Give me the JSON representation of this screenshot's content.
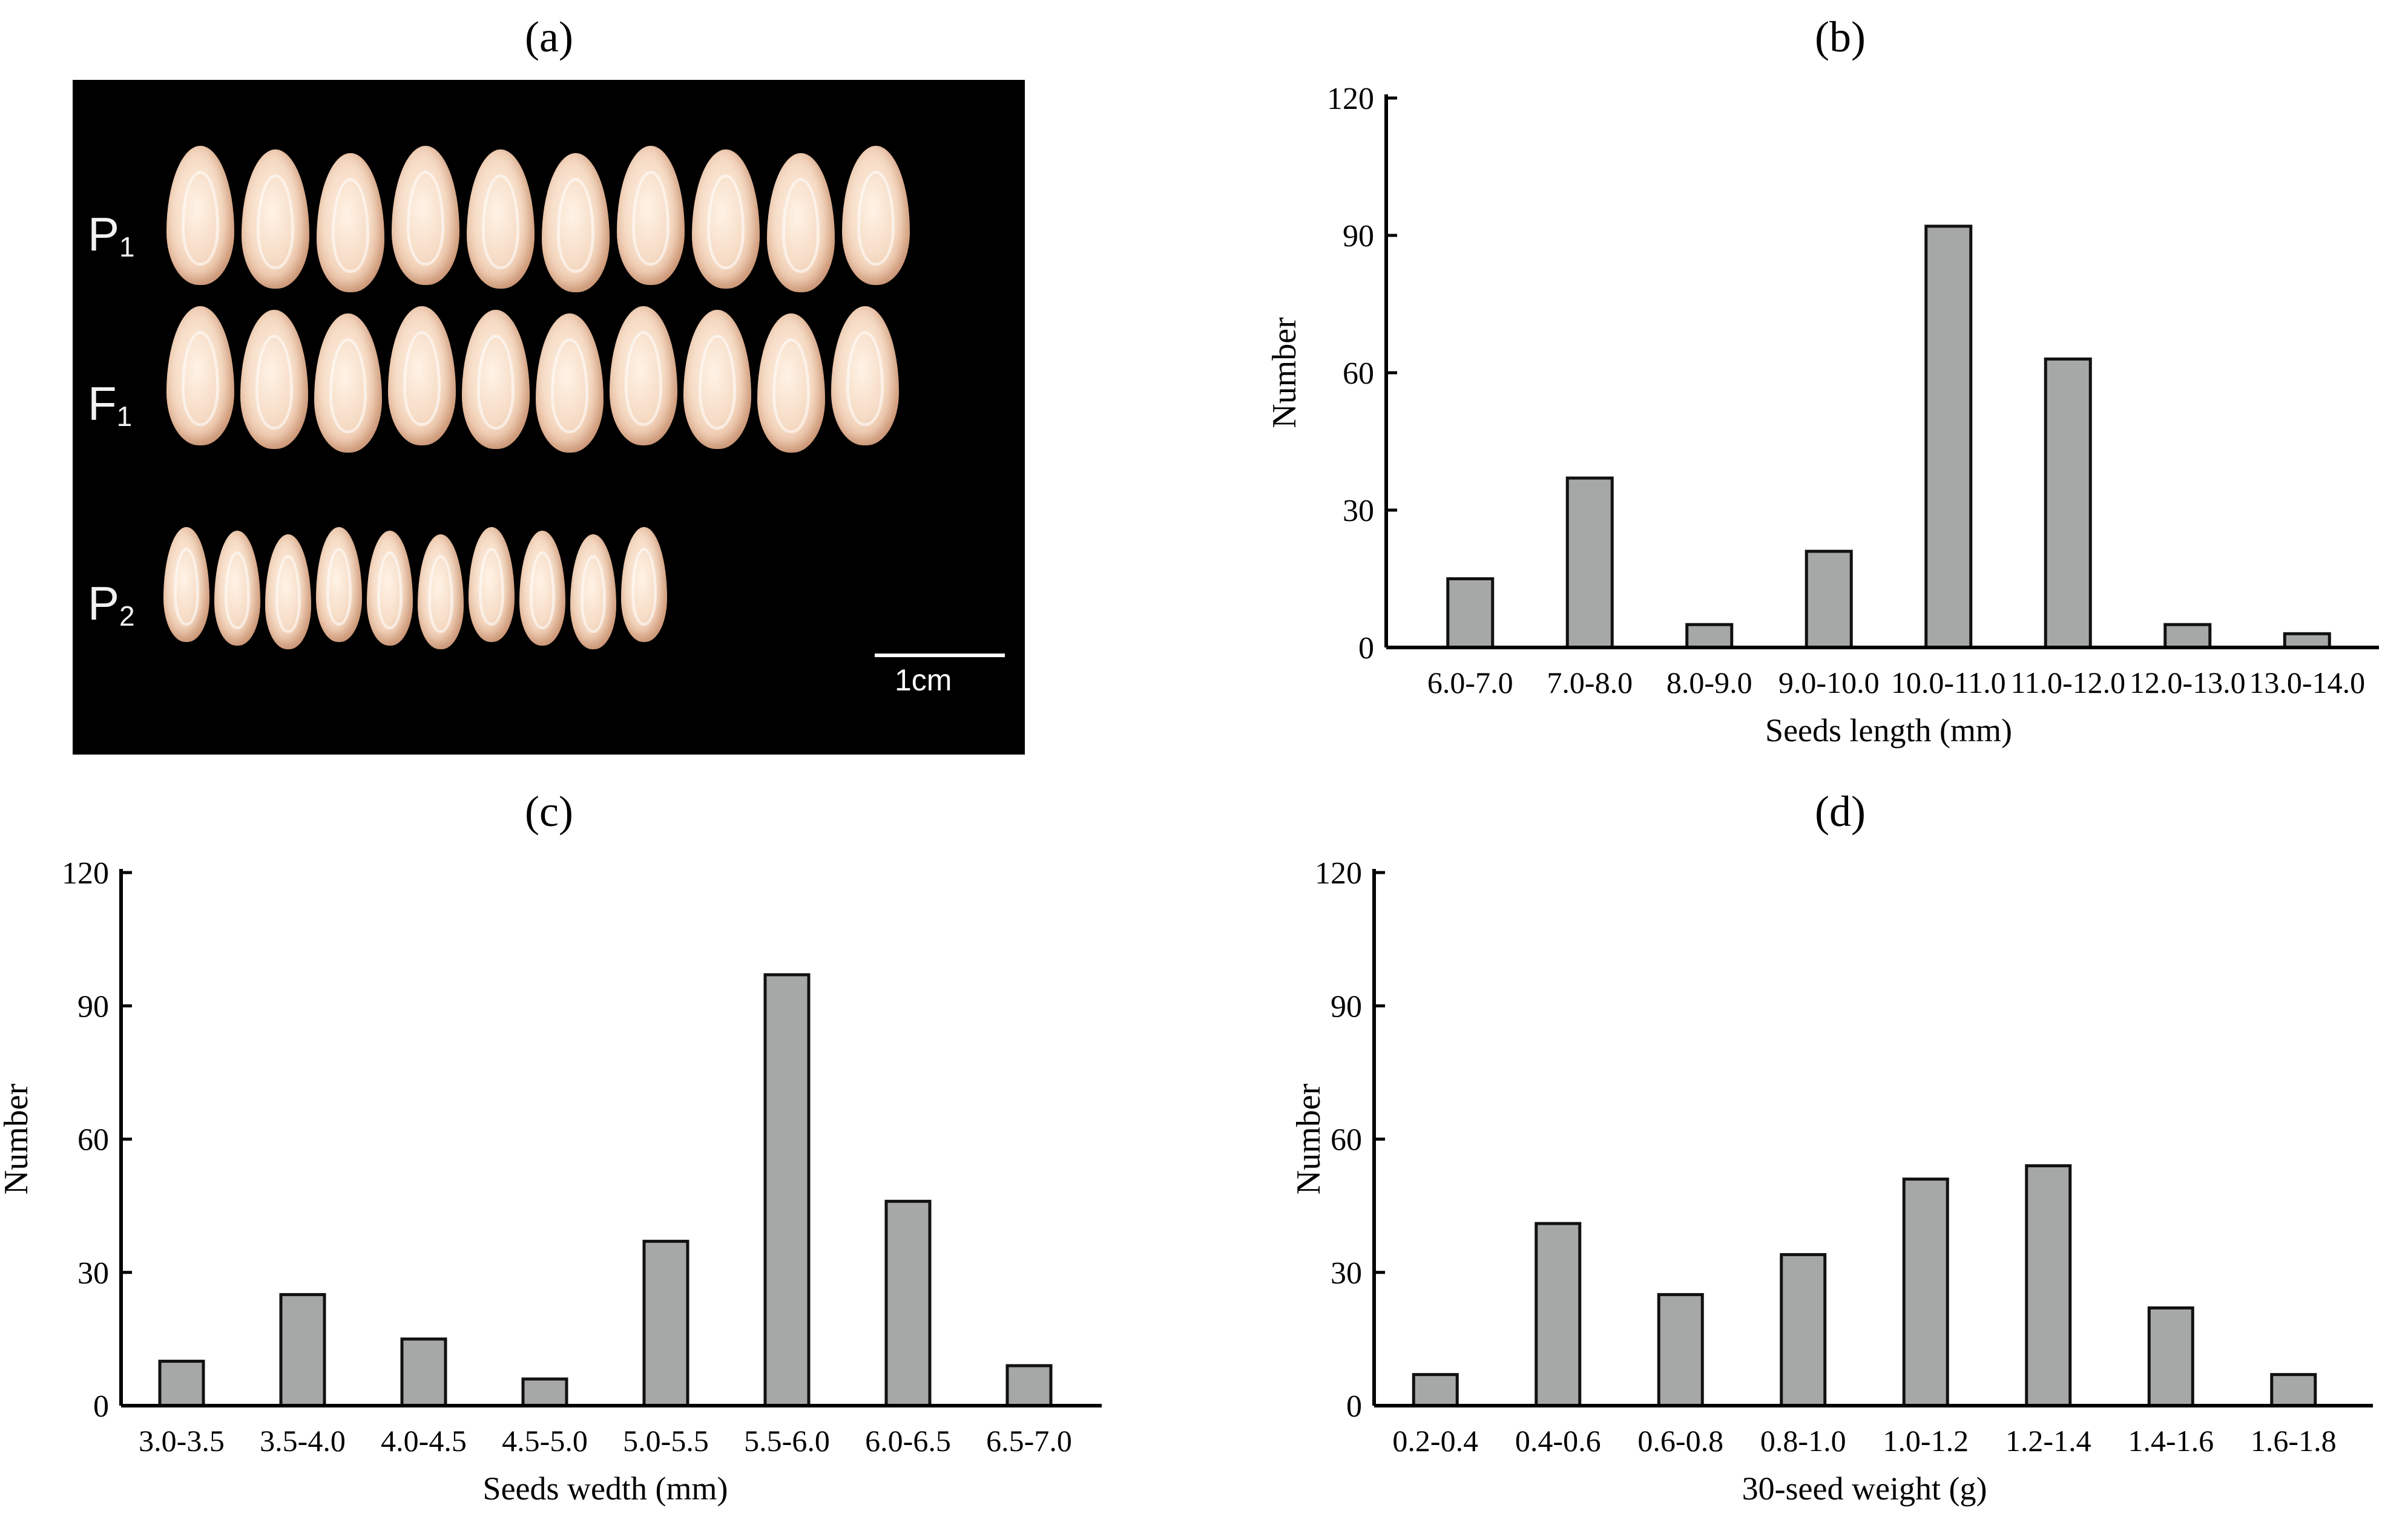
{
  "panel_labels": [
    "(a)",
    "(b)",
    "(c)",
    "(d)"
  ],
  "photo": {
    "rows": [
      {
        "label": "P",
        "sub": "1",
        "count": 10
      },
      {
        "label": "F",
        "sub": "1",
        "count": 10
      },
      {
        "label": "P",
        "sub": "2",
        "count": 10
      }
    ],
    "scale_label": "1cm"
  },
  "colors": {
    "bar_fill": "#a6a8a8",
    "bar_stroke": "#111111",
    "axis": "#000000"
  },
  "chart_data": [
    {
      "id": "b",
      "type": "bar",
      "categories": [
        "6.0-7.0",
        "7.0-8.0",
        "8.0-9.0",
        "9.0-10.0",
        "10.0-11.0",
        "11.0-12.0",
        "12.0-13.0",
        "13.0-14.0"
      ],
      "values": [
        15,
        37,
        5,
        21,
        92,
        63,
        5,
        3
      ],
      "ylim": [
        0,
        120
      ],
      "yticks": [
        0,
        30,
        60,
        90,
        120
      ],
      "xlabel": "Seeds length (mm)",
      "ylabel": "Number"
    },
    {
      "id": "c",
      "type": "bar",
      "categories": [
        "3.0-3.5",
        "3.5-4.0",
        "4.0-4.5",
        "4.5-5.0",
        "5.0-5.5",
        "5.5-6.0",
        "6.0-6.5",
        "6.5-7.0"
      ],
      "values": [
        10,
        25,
        15,
        6,
        37,
        97,
        46,
        9
      ],
      "ylim": [
        0,
        120
      ],
      "yticks": [
        0,
        30,
        60,
        90,
        120
      ],
      "xlabel": "Seeds wedth (mm)",
      "ylabel": "Number"
    },
    {
      "id": "d",
      "type": "bar",
      "categories": [
        "0.2-0.4",
        "0.4-0.6",
        "0.6-0.8",
        "0.8-1.0",
        "1.0-1.2",
        "1.2-1.4",
        "1.4-1.6",
        "1.6-1.8"
      ],
      "values": [
        7,
        41,
        25,
        34,
        51,
        54,
        22,
        7
      ],
      "ylim": [
        0,
        120
      ],
      "yticks": [
        0,
        30,
        60,
        90,
        120
      ],
      "xlabel": "30-seed weight (g)",
      "ylabel": "Number"
    }
  ]
}
